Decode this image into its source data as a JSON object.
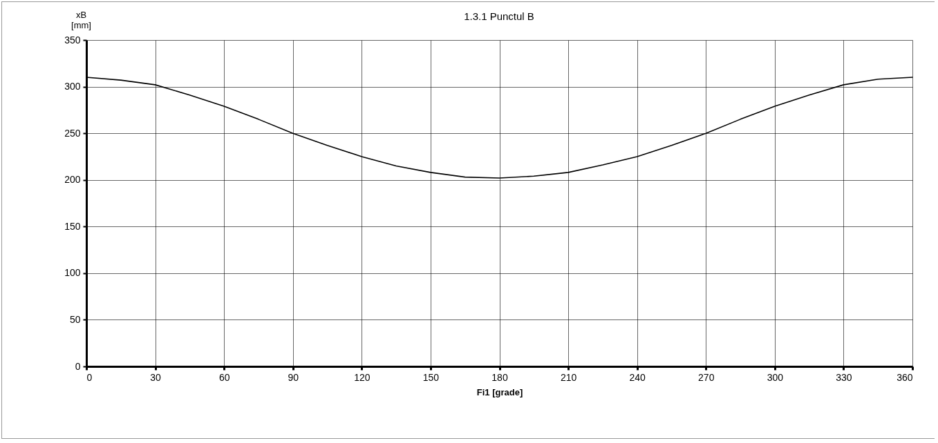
{
  "chart_data": {
    "type": "line",
    "title": "1.3.1 Punctul B",
    "xlabel": "Fi1 [grade]",
    "ylabel": "xB [mm]",
    "x": [
      0,
      15,
      30,
      45,
      60,
      75,
      90,
      105,
      120,
      135,
      150,
      165,
      180,
      195,
      210,
      225,
      240,
      255,
      270,
      285,
      300,
      315,
      330,
      345,
      360
    ],
    "series": [
      {
        "color": "#000000",
        "values": [
          310,
          307,
          302,
          291,
          279,
          265,
          250,
          237,
          225,
          215,
          208,
          203,
          202,
          204,
          208,
          216,
          225,
          237,
          250,
          265,
          279,
          291,
          302,
          308,
          310
        ]
      }
    ],
    "xlim": [
      0,
      360
    ],
    "xticks": [
      0,
      30,
      60,
      90,
      120,
      150,
      180,
      210,
      240,
      270,
      300,
      330,
      360
    ],
    "ylim": [
      0,
      350
    ],
    "yticks": [
      0,
      50,
      100,
      150,
      200,
      250,
      300,
      350
    ],
    "grid": true,
    "legend": false,
    "marker": "none",
    "line_style": "solid"
  }
}
